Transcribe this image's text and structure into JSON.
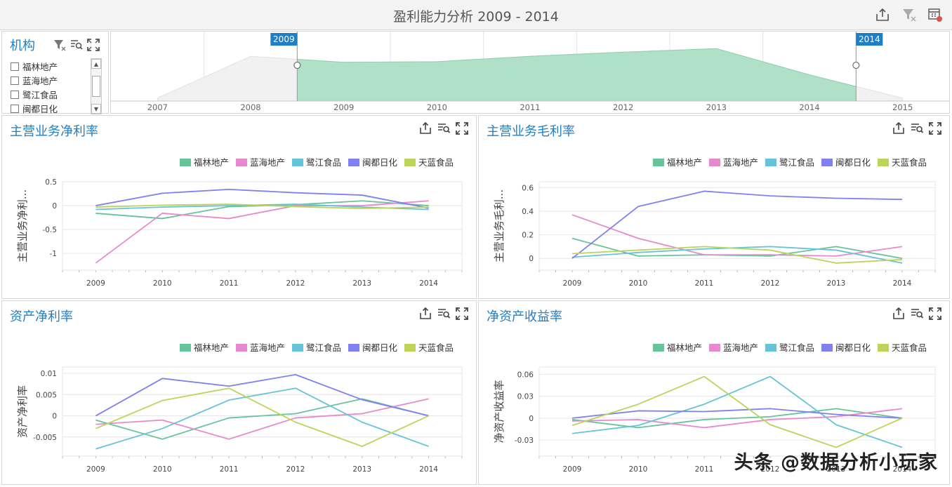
{
  "app": {
    "title": "盈利能力分析  2009 - 2014",
    "toolbar_icons": [
      "export-icon",
      "clear-filter-icon",
      "calendar-settings-icon"
    ]
  },
  "filter": {
    "title": "机构",
    "icons": [
      "clear-filter-icon",
      "search-icon",
      "fullscreen-icon"
    ],
    "items": [
      {
        "label": "福林地产",
        "checked": false
      },
      {
        "label": "蓝海地产",
        "checked": false
      },
      {
        "label": "鹭江食品",
        "checked": false
      },
      {
        "label": "闽都日化",
        "checked": false
      }
    ]
  },
  "range": {
    "start_label": "2009",
    "end_label": "2014",
    "ticks": [
      "2007",
      "2008",
      "2009",
      "2010",
      "2011",
      "2012",
      "2013",
      "2014",
      "2015"
    ],
    "area_values": [
      0.05,
      0.75,
      0.65,
      0.66,
      0.75,
      0.82,
      0.88,
      0.44,
      0.05
    ]
  },
  "colors": {
    "福林地产": "#66c499",
    "蓝海地产": "#e889cf",
    "鹭江食品": "#66c4d8",
    "闽都日化": "#8080f0",
    "天蓝食品": "#bcd45a",
    "title_blue": "#1f7fc4",
    "range_fill": "#b1e0c8"
  },
  "legend": [
    "福林地产",
    "蓝海地产",
    "鹭江食品",
    "闽都日化",
    "天蓝食品"
  ],
  "panel_icons": [
    "export-icon",
    "filter-icon",
    "fullscreen-icon"
  ],
  "watermark": "头条 @数据分析小玩家",
  "chart_data": [
    {
      "type": "line",
      "title": "主营业务净利率",
      "ylabel": "主营业务净利...",
      "x": [
        "2009",
        "2010",
        "2011",
        "2012",
        "2013",
        "2014"
      ],
      "ylim": [
        -1.35,
        0.5
      ],
      "yticks": [
        -1,
        -0.5,
        0,
        0.5
      ],
      "yticklabels": [
        "-1",
        "-0.5",
        "0",
        "0.5"
      ],
      "series": [
        {
          "name": "福林地产",
          "values": [
            -0.16,
            -0.27,
            -0.02,
            0.02,
            0.1,
            0.0
          ]
        },
        {
          "name": "蓝海地产",
          "values": [
            -1.2,
            -0.16,
            -0.27,
            0.0,
            0.0,
            0.1
          ]
        },
        {
          "name": "鹭江食品",
          "values": [
            -0.08,
            -0.03,
            0.0,
            0.03,
            -0.03,
            -0.08
          ]
        },
        {
          "name": "闽都日化",
          "values": [
            0.0,
            0.26,
            0.34,
            0.27,
            0.22,
            -0.05
          ]
        },
        {
          "name": "天蓝食品",
          "values": [
            -0.03,
            0.01,
            0.03,
            -0.02,
            -0.06,
            -0.03
          ]
        }
      ]
    },
    {
      "type": "line",
      "title": "主营业务毛利率",
      "ylabel": "主营业务毛利...",
      "x": [
        "2009",
        "2010",
        "2011",
        "2012",
        "2013",
        "2014"
      ],
      "ylim": [
        -0.1,
        0.65
      ],
      "yticks": [
        0,
        0.2,
        0.4,
        0.6
      ],
      "yticklabels": [
        "0",
        "0.2",
        "0.4",
        "0.6"
      ],
      "series": [
        {
          "name": "福林地产",
          "values": [
            0.17,
            0.02,
            0.03,
            0.02,
            0.1,
            0.0
          ]
        },
        {
          "name": "蓝海地产",
          "values": [
            0.37,
            0.17,
            0.03,
            0.03,
            0.02,
            0.1
          ]
        },
        {
          "name": "鹭江食品",
          "values": [
            0.01,
            0.05,
            0.08,
            0.1,
            0.07,
            -0.04
          ]
        },
        {
          "name": "闽都日化",
          "values": [
            0.0,
            0.44,
            0.57,
            0.53,
            0.51,
            0.5
          ]
        },
        {
          "name": "天蓝食品",
          "values": [
            0.04,
            0.07,
            0.1,
            0.07,
            -0.04,
            -0.01
          ]
        }
      ]
    },
    {
      "type": "line",
      "title": "资产净利率",
      "ylabel": "资产净利率",
      "x": [
        "2009",
        "2010",
        "2011",
        "2012",
        "2013",
        "2014"
      ],
      "ylim": [
        -0.0095,
        0.0115
      ],
      "yticks": [
        -0.005,
        0,
        0.005,
        0.01
      ],
      "yticklabels": [
        "-0.005",
        "0",
        "0.005",
        "0.01"
      ],
      "series": [
        {
          "name": "福林地产",
          "values": [
            -0.001,
            -0.0055,
            -0.0005,
            0.0005,
            0.004,
            0.0
          ]
        },
        {
          "name": "蓝海地产",
          "values": [
            -0.002,
            -0.001,
            -0.0055,
            -0.0005,
            0.0005,
            0.004
          ]
        },
        {
          "name": "鹭江食品",
          "values": [
            -0.0078,
            -0.003,
            0.0037,
            0.0065,
            -0.0015,
            -0.0072
          ]
        },
        {
          "name": "闽都日化",
          "values": [
            0.0,
            0.0088,
            0.007,
            0.0097,
            0.0038,
            0.0
          ]
        },
        {
          "name": "天蓝食品",
          "values": [
            -0.003,
            0.0036,
            0.0065,
            -0.0015,
            -0.0072,
            0.0
          ]
        }
      ]
    },
    {
      "type": "line",
      "title": "净资产收益率",
      "ylabel": "净资产收益率",
      "x": [
        "2009",
        "2010",
        "2011",
        "2012",
        "2013",
        "2014"
      ],
      "ylim": [
        -0.052,
        0.07
      ],
      "yticks": [
        -0.03,
        0,
        0.03,
        0.06
      ],
      "yticklabels": [
        "-0.03",
        "0",
        "0.03",
        "0.06"
      ],
      "series": [
        {
          "name": "福林地产",
          "values": [
            -0.002,
            -0.013,
            -0.002,
            0.002,
            0.013,
            0.0
          ]
        },
        {
          "name": "蓝海地产",
          "values": [
            -0.004,
            -0.002,
            -0.013,
            -0.002,
            0.002,
            0.013
          ]
        },
        {
          "name": "鹭江食品",
          "values": [
            -0.021,
            -0.01,
            0.019,
            0.057,
            -0.009,
            -0.04
          ]
        },
        {
          "name": "闽都日化",
          "values": [
            0.0,
            0.01,
            0.009,
            0.013,
            0.005,
            0.0
          ]
        },
        {
          "name": "天蓝食品",
          "values": [
            -0.01,
            0.019,
            0.057,
            -0.009,
            -0.04,
            0.0
          ]
        }
      ]
    }
  ]
}
